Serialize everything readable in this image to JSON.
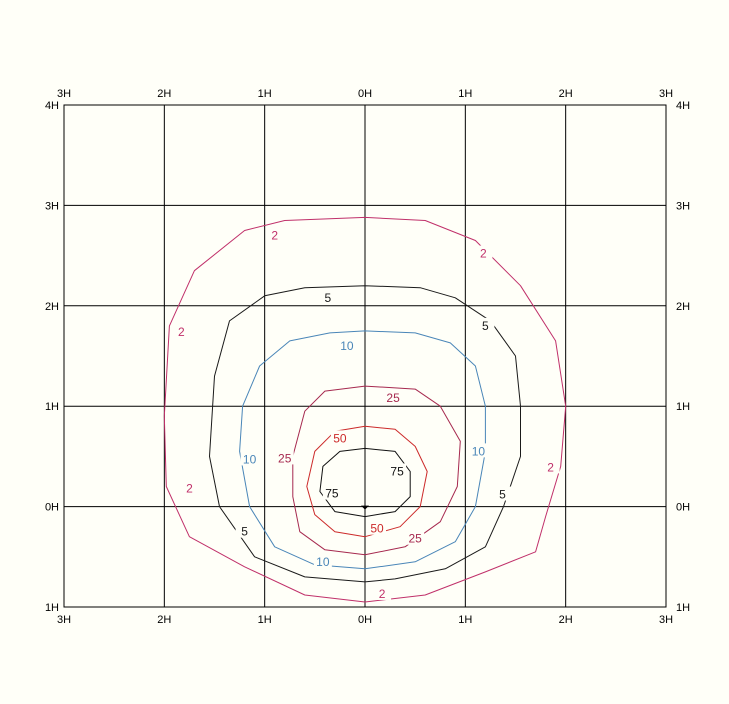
{
  "chart_data": {
    "type": "contour",
    "title": "",
    "xlabel": "",
    "ylabel": "",
    "unit_label": "H",
    "xlim": [
      -3,
      3
    ],
    "ylim": [
      -1,
      4
    ],
    "x_ticks_top": [
      "3H",
      "2H",
      "1H",
      "0H",
      "1H",
      "2H",
      "3H"
    ],
    "x_ticks_bottom": [
      "3H",
      "2H",
      "1H",
      "0H",
      "1H",
      "2H",
      "3H"
    ],
    "y_ticks_left": [
      "4H",
      "3H",
      "2H",
      "1H",
      "0H",
      "1H"
    ],
    "y_ticks_right": [
      "4H",
      "3H",
      "2H",
      "1H",
      "0H",
      "1H"
    ],
    "grid": true,
    "marker": {
      "x": 0,
      "y": 0
    },
    "series": [
      {
        "name": "2",
        "color": "#c0306a",
        "points": [
          [
            0,
            2.88
          ],
          [
            0.6,
            2.85
          ],
          [
            1.1,
            2.65
          ],
          [
            1.55,
            2.2
          ],
          [
            1.9,
            1.65
          ],
          [
            2.0,
            1.0
          ],
          [
            1.95,
            0.4
          ],
          [
            1.8,
            -0.1
          ],
          [
            1.7,
            -0.45
          ],
          [
            1.2,
            -0.65
          ],
          [
            0.6,
            -0.88
          ],
          [
            0,
            -0.95
          ],
          [
            -0.6,
            -0.88
          ],
          [
            -1.2,
            -0.6
          ],
          [
            -1.75,
            -0.3
          ],
          [
            -1.98,
            0.2
          ],
          [
            -2.0,
            0.9
          ],
          [
            -1.95,
            1.8
          ],
          [
            -1.7,
            2.35
          ],
          [
            -1.2,
            2.75
          ],
          [
            -0.8,
            2.85
          ],
          [
            0,
            2.88
          ]
        ],
        "labels": [
          [
            -0.9,
            2.7
          ],
          [
            1.18,
            2.52
          ],
          [
            -1.83,
            1.74
          ],
          [
            1.85,
            0.39
          ],
          [
            -1.75,
            0.18
          ],
          [
            0.17,
            -0.87
          ]
        ]
      },
      {
        "name": "5",
        "color": "#1a1a1a",
        "points": [
          [
            0,
            2.2
          ],
          [
            0.55,
            2.18
          ],
          [
            0.9,
            2.08
          ],
          [
            1.25,
            1.85
          ],
          [
            1.5,
            1.5
          ],
          [
            1.55,
            1.0
          ],
          [
            1.55,
            0.5
          ],
          [
            1.38,
            0.0
          ],
          [
            1.2,
            -0.4
          ],
          [
            0.8,
            -0.62
          ],
          [
            0.3,
            -0.72
          ],
          [
            0,
            -0.75
          ],
          [
            -0.6,
            -0.7
          ],
          [
            -1.1,
            -0.5
          ],
          [
            -1.45,
            0.0
          ],
          [
            -1.55,
            0.5
          ],
          [
            -1.5,
            1.3
          ],
          [
            -1.35,
            1.85
          ],
          [
            -1.0,
            2.1
          ],
          [
            -0.6,
            2.18
          ],
          [
            0,
            2.2
          ]
        ],
        "labels": [
          [
            -0.37,
            2.08
          ],
          [
            1.2,
            1.8
          ],
          [
            1.37,
            0.12
          ],
          [
            -1.2,
            -0.25
          ]
        ]
      },
      {
        "name": "10",
        "color": "#4a86b8",
        "points": [
          [
            0,
            1.75
          ],
          [
            0.5,
            1.73
          ],
          [
            0.85,
            1.63
          ],
          [
            1.1,
            1.4
          ],
          [
            1.2,
            1.0
          ],
          [
            1.2,
            0.55
          ],
          [
            1.1,
            0.0
          ],
          [
            0.9,
            -0.35
          ],
          [
            0.5,
            -0.55
          ],
          [
            0,
            -0.62
          ],
          [
            -0.5,
            -0.58
          ],
          [
            -0.9,
            -0.4
          ],
          [
            -1.15,
            0.0
          ],
          [
            -1.25,
            0.55
          ],
          [
            -1.22,
            1.0
          ],
          [
            -1.05,
            1.4
          ],
          [
            -0.75,
            1.65
          ],
          [
            -0.35,
            1.73
          ],
          [
            0,
            1.75
          ]
        ],
        "labels": [
          [
            -0.18,
            1.6
          ],
          [
            1.13,
            0.55
          ],
          [
            -1.15,
            0.47
          ],
          [
            -0.42,
            -0.55
          ]
        ]
      },
      {
        "name": "25",
        "color": "#a6294f",
        "points": [
          [
            0,
            1.2
          ],
          [
            0.5,
            1.17
          ],
          [
            0.75,
            1.0
          ],
          [
            0.95,
            0.65
          ],
          [
            0.92,
            0.2
          ],
          [
            0.75,
            -0.15
          ],
          [
            0.4,
            -0.4
          ],
          [
            0,
            -0.48
          ],
          [
            -0.4,
            -0.43
          ],
          [
            -0.65,
            -0.25
          ],
          [
            -0.72,
            0.1
          ],
          [
            -0.72,
            0.5
          ],
          [
            -0.6,
            0.95
          ],
          [
            -0.4,
            1.15
          ],
          [
            0,
            1.2
          ]
        ],
        "labels": [
          [
            0.28,
            1.08
          ],
          [
            -0.8,
            0.48
          ],
          [
            0.5,
            -0.32
          ]
        ]
      },
      {
        "name": "50",
        "color": "#cc2a2a",
        "points": [
          [
            0,
            0.8
          ],
          [
            0.3,
            0.77
          ],
          [
            0.5,
            0.6
          ],
          [
            0.62,
            0.35
          ],
          [
            0.55,
            0.0
          ],
          [
            0.35,
            -0.2
          ],
          [
            0,
            -0.3
          ],
          [
            -0.3,
            -0.25
          ],
          [
            -0.5,
            -0.08
          ],
          [
            -0.58,
            0.2
          ],
          [
            -0.5,
            0.55
          ],
          [
            -0.3,
            0.75
          ],
          [
            0,
            0.8
          ]
        ],
        "labels": [
          [
            -0.25,
            0.68
          ],
          [
            0.12,
            -0.22
          ]
        ]
      },
      {
        "name": "75",
        "color": "#111111",
        "points": [
          [
            0,
            0.58
          ],
          [
            0.3,
            0.55
          ],
          [
            0.45,
            0.35
          ],
          [
            0.45,
            0.1
          ],
          [
            0.3,
            -0.05
          ],
          [
            0,
            -0.1
          ],
          [
            -0.3,
            -0.05
          ],
          [
            -0.45,
            0.15
          ],
          [
            -0.42,
            0.4
          ],
          [
            -0.25,
            0.55
          ],
          [
            0,
            0.58
          ]
        ],
        "labels": [
          [
            0.32,
            0.35
          ],
          [
            -0.33,
            0.13
          ]
        ]
      }
    ]
  }
}
